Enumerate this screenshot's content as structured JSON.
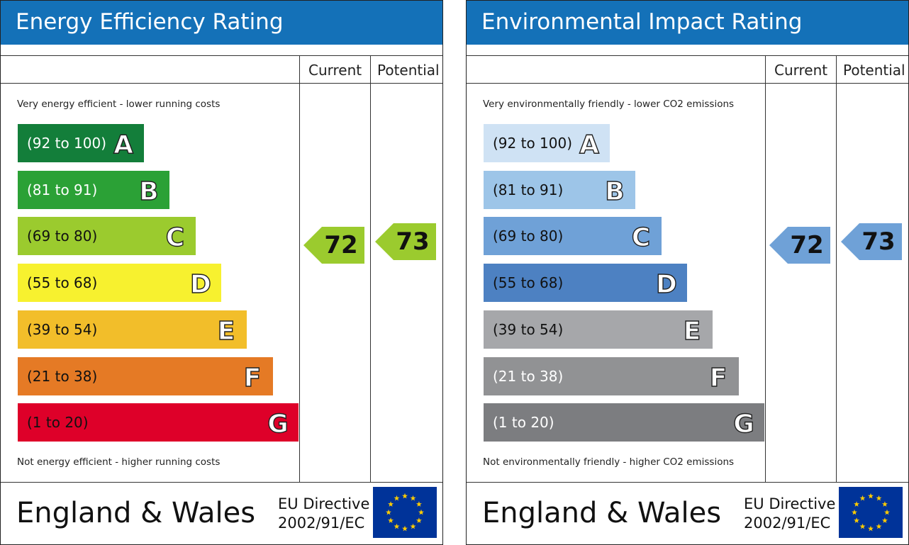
{
  "chart_data": [
    {
      "type": "bar",
      "title": "Energy Efficiency Rating",
      "columns": [
        "Current",
        "Potential"
      ],
      "top_note": "Very energy efficient - lower running costs",
      "bottom_note": "Not energy efficient - higher running costs",
      "bands": [
        {
          "letter": "A",
          "range": "(92 to 100)",
          "color": "#137e3a",
          "text_color": "#ffffff"
        },
        {
          "letter": "B",
          "range": "(81 to 91)",
          "color": "#2ba136",
          "text_color": "#ffffff"
        },
        {
          "letter": "C",
          "range": "(69 to 80)",
          "color": "#9bcb2e",
          "text_color": "#111111"
        },
        {
          "letter": "D",
          "range": "(55 to 68)",
          "color": "#f7f12f",
          "text_color": "#111111"
        },
        {
          "letter": "E",
          "range": "(39 to 54)",
          "color": "#f2be2a",
          "text_color": "#111111"
        },
        {
          "letter": "F",
          "range": "(21 to 38)",
          "color": "#e57a25",
          "text_color": "#111111"
        },
        {
          "letter": "G",
          "range": "(1 to 20)",
          "color": "#de0029",
          "text_color": "#111111"
        }
      ],
      "current": {
        "value": 72,
        "color": "#9bcb2e"
      },
      "potential": {
        "value": 73,
        "color": "#9bcb2e"
      },
      "footer": {
        "country": "England & Wales",
        "directive_line1": "EU Directive",
        "directive_line2": "2002/91/EC"
      }
    },
    {
      "type": "bar",
      "title": "Environmental Impact Rating",
      "columns": [
        "Current",
        "Potential"
      ],
      "top_note": "Very environmentally friendly - lower CO2 emissions",
      "bottom_note": "Not environmentally friendly - higher CO2 emissions",
      "bands": [
        {
          "letter": "A",
          "range": "(92 to 100)",
          "color": "#cfe2f4",
          "text_color": "#111111"
        },
        {
          "letter": "B",
          "range": "(81 to 91)",
          "color": "#9dc5e8",
          "text_color": "#111111"
        },
        {
          "letter": "C",
          "range": "(69 to 80)",
          "color": "#6fa1d7",
          "text_color": "#111111"
        },
        {
          "letter": "D",
          "range": "(55 to 68)",
          "color": "#4d81c2",
          "text_color": "#111111"
        },
        {
          "letter": "E",
          "range": "(39 to 54)",
          "color": "#a6a7aa",
          "text_color": "#111111"
        },
        {
          "letter": "F",
          "range": "(21 to 38)",
          "color": "#919294",
          "text_color": "#ffffff"
        },
        {
          "letter": "G",
          "range": "(1 to 20)",
          "color": "#7c7d80",
          "text_color": "#ffffff"
        }
      ],
      "current": {
        "value": 72,
        "color": "#6fa1d7"
      },
      "potential": {
        "value": 73,
        "color": "#6fa1d7"
      },
      "footer": {
        "country": "England & Wales",
        "directive_line1": "EU Directive",
        "directive_line2": "2002/91/EC"
      }
    }
  ]
}
